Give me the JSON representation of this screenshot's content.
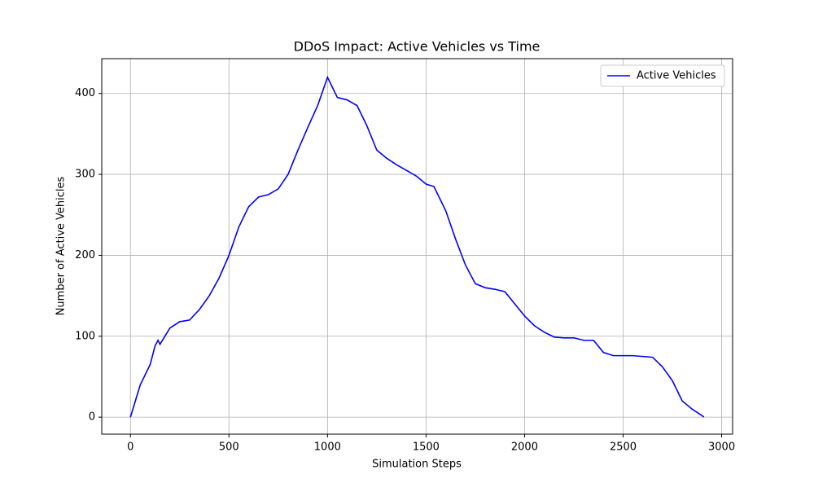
{
  "chart_data": {
    "type": "line",
    "title": "DDoS Impact: Active Vehicles vs Time",
    "xlabel": "Simulation Steps",
    "ylabel": "Number of Active Vehicles",
    "x": [
      0,
      25,
      50,
      100,
      125,
      140,
      150,
      175,
      200,
      250,
      300,
      350,
      400,
      450,
      500,
      550,
      600,
      650,
      700,
      750,
      800,
      850,
      900,
      950,
      1000,
      1050,
      1100,
      1150,
      1200,
      1250,
      1300,
      1350,
      1400,
      1450,
      1500,
      1540,
      1600,
      1650,
      1700,
      1750,
      1800,
      1850,
      1900,
      1950,
      2000,
      2050,
      2100,
      2150,
      2200,
      2250,
      2300,
      2350,
      2400,
      2450,
      2500,
      2550,
      2600,
      2650,
      2700,
      2750,
      2800,
      2850,
      2900,
      2910
    ],
    "series": [
      {
        "name": "Active Vehicles",
        "color": "#0000ff",
        "values": [
          0,
          20,
          40,
          65,
          88,
          95,
          90,
          100,
          110,
          118,
          120,
          133,
          150,
          172,
          200,
          235,
          260,
          272,
          275,
          282,
          300,
          330,
          358,
          385,
          420,
          395,
          392,
          385,
          360,
          330,
          320,
          312,
          305,
          298,
          288,
          285,
          255,
          220,
          188,
          165,
          160,
          158,
          155,
          140,
          125,
          113,
          105,
          99,
          98,
          98,
          95,
          95,
          80,
          76,
          76,
          76,
          75,
          74,
          62,
          45,
          20,
          10,
          2,
          0
        ]
      }
    ],
    "xlim": [
      -145.5,
      3055.5
    ],
    "ylim": [
      -21,
      443
    ],
    "xticks": [
      0,
      500,
      1000,
      1500,
      2000,
      2500,
      3000
    ],
    "yticks": [
      0,
      100,
      200,
      300,
      400
    ],
    "grid": true,
    "legend": "upper right"
  }
}
